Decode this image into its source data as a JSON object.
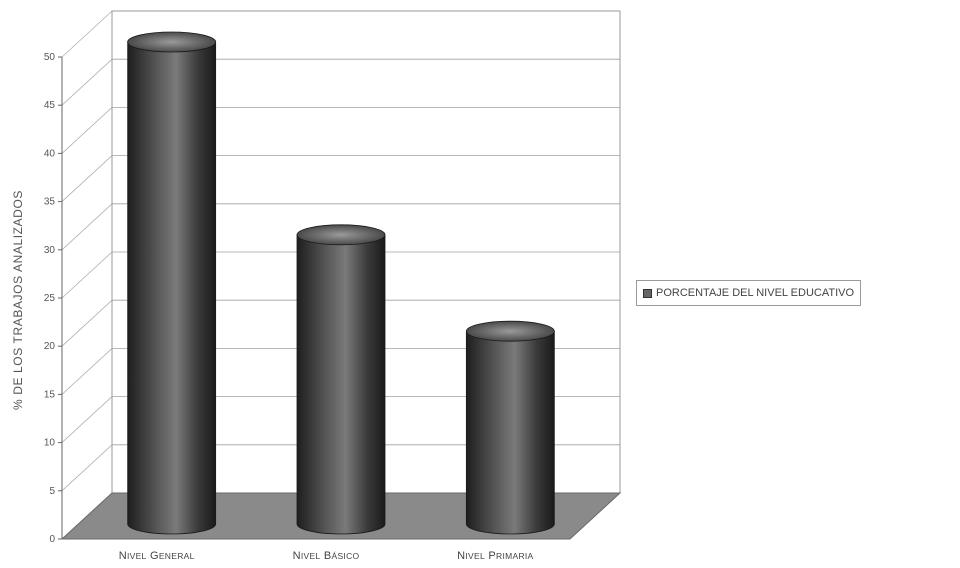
{
  "chart_data": {
    "type": "bar",
    "categories": [
      "Nivel General",
      "Nivel Básico",
      "Nivel Primaria"
    ],
    "series": [
      {
        "name": "PORCENTAJE DEL NIVEL EDUCATIVO",
        "values": [
          50,
          30,
          20
        ]
      }
    ],
    "ylabel": "% DE LOS TRABAJOS ANALIZADOS",
    "xlabel": "",
    "ylim": [
      0,
      50
    ],
    "yticks": [
      0,
      5,
      10,
      15,
      20,
      25,
      30,
      35,
      40,
      45,
      50
    ],
    "grid": true,
    "legend_position": "right",
    "style": "3d-cylinder",
    "colors": {
      "bar": "#3b3b3b",
      "floor": "#8a8a8a",
      "grid": "#9a9a9a"
    }
  }
}
